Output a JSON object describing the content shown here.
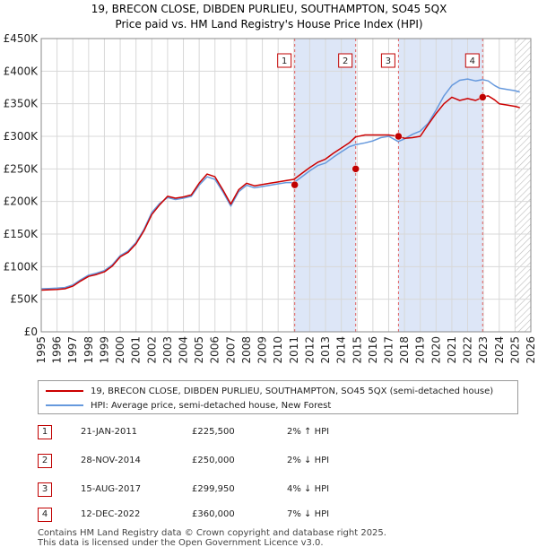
{
  "chart_data": {
    "type": "line",
    "title": "19, BRECON CLOSE, DIBDEN PURLIEU, SOUTHAMPTON, SO45 5QX",
    "subtitle": "Price paid vs. HM Land Registry's House Price Index (HPI)",
    "xlim": [
      1995,
      2026
    ],
    "ylim": [
      0,
      450000
    ],
    "yticks": [
      {
        "value": 0,
        "label": "£0"
      },
      {
        "value": 50000,
        "label": "£50K"
      },
      {
        "value": 100000,
        "label": "£100K"
      },
      {
        "value": 150000,
        "label": "£150K"
      },
      {
        "value": 200000,
        "label": "£200K"
      },
      {
        "value": 250000,
        "label": "£250K"
      },
      {
        "value": 300000,
        "label": "£300K"
      },
      {
        "value": 350000,
        "label": "£350K"
      },
      {
        "value": 400000,
        "label": "£400K"
      },
      {
        "value": 450000,
        "label": "£450K"
      }
    ],
    "xticks": [
      "1995",
      "1996",
      "1997",
      "1998",
      "1999",
      "2000",
      "2001",
      "2002",
      "2003",
      "2004",
      "2005",
      "2006",
      "2007",
      "2008",
      "2009",
      "2010",
      "2011",
      "2012",
      "2013",
      "2014",
      "2015",
      "2016",
      "2017",
      "2018",
      "2019",
      "2020",
      "2021",
      "2022",
      "2023",
      "2024",
      "2025",
      "2026"
    ],
    "shaded_ranges": [
      [
        2011.05,
        2014.91
      ],
      [
        2017.62,
        2022.95
      ]
    ],
    "hatch_from": 2025.0,
    "series": [
      {
        "name": "19, BRECON CLOSE, DIBDEN PURLIEU, SOUTHAMPTON, SO45 5QX (semi-detached house)",
        "color": "#cc0000",
        "x": [
          1995.0,
          1995.5,
          1996.0,
          1996.5,
          1997.0,
          1997.5,
          1998.0,
          1998.5,
          1999.0,
          1999.5,
          2000.0,
          2000.5,
          2001.0,
          2001.5,
          2002.0,
          2002.5,
          2003.0,
          2003.5,
          2004.0,
          2004.5,
          2005.0,
          2005.5,
          2006.0,
          2006.5,
          2007.0,
          2007.5,
          2008.0,
          2008.5,
          2009.0,
          2009.5,
          2010.0,
          2010.5,
          2011.0,
          2011.5,
          2012.0,
          2012.5,
          2013.0,
          2013.5,
          2014.0,
          2014.5,
          2014.9,
          2015.5,
          2016.0,
          2016.5,
          2017.0,
          2017.6,
          2018.0,
          2018.5,
          2019.0,
          2019.5,
          2020.0,
          2020.5,
          2021.0,
          2021.5,
          2022.0,
          2022.5,
          2022.95,
          2023.3,
          2023.7,
          2024.0,
          2024.5,
          2025.0,
          2025.3
        ],
        "values": [
          64000,
          64500,
          65000,
          66000,
          70000,
          78000,
          85000,
          88000,
          92000,
          101000,
          115000,
          122000,
          135000,
          155000,
          180000,
          195000,
          208000,
          205000,
          207000,
          210000,
          228000,
          242000,
          238000,
          218000,
          196000,
          218000,
          228000,
          224000,
          226000,
          228000,
          230000,
          232000,
          234000,
          243000,
          252000,
          260000,
          265000,
          274000,
          282000,
          290000,
          299000,
          302000,
          302000,
          302000,
          302000,
          300000,
          297000,
          298000,
          300000,
          318000,
          335000,
          350000,
          360000,
          355000,
          358000,
          355000,
          360000,
          362000,
          356000,
          350000,
          348000,
          346000,
          344000
        ]
      },
      {
        "name": "HPI: Average price, semi-detached house, New Forest",
        "color": "#6699dd",
        "x": [
          1995.0,
          1995.5,
          1996.0,
          1996.5,
          1997.0,
          1997.5,
          1998.0,
          1998.5,
          1999.0,
          1999.5,
          2000.0,
          2000.5,
          2001.0,
          2001.5,
          2002.0,
          2002.5,
          2003.0,
          2003.5,
          2004.0,
          2004.5,
          2005.0,
          2005.5,
          2006.0,
          2006.5,
          2007.0,
          2007.5,
          2008.0,
          2008.5,
          2009.0,
          2009.5,
          2010.0,
          2010.5,
          2011.0,
          2011.5,
          2012.0,
          2012.5,
          2013.0,
          2013.5,
          2014.0,
          2014.5,
          2014.9,
          2015.5,
          2016.0,
          2016.5,
          2017.0,
          2017.6,
          2018.0,
          2018.5,
          2019.0,
          2019.5,
          2020.0,
          2020.5,
          2021.0,
          2021.5,
          2022.0,
          2022.5,
          2022.95,
          2023.3,
          2023.7,
          2024.0,
          2024.5,
          2025.0,
          2025.3
        ],
        "values": [
          66000,
          66500,
          67000,
          68000,
          72000,
          80000,
          87000,
          90000,
          94000,
          103000,
          117000,
          124000,
          137000,
          157000,
          183000,
          197000,
          206000,
          203000,
          205000,
          208000,
          225000,
          238000,
          234000,
          215000,
          193000,
          215000,
          225000,
          221000,
          223000,
          225000,
          227000,
          229000,
          229000,
          238000,
          247000,
          255000,
          259000,
          268000,
          276000,
          284000,
          287000,
          290000,
          293000,
          298000,
          300000,
          292000,
          296000,
          303000,
          308000,
          320000,
          340000,
          362000,
          378000,
          386000,
          388000,
          385000,
          387000,
          385000,
          378000,
          374000,
          372000,
          370000,
          368000
        ]
      }
    ],
    "sales": [
      {
        "label": "1",
        "date": "21-JAN-2011",
        "x": 2011.05,
        "price": "£225,500",
        "value": 225500,
        "hpi": "2% ↑ HPI"
      },
      {
        "label": "2",
        "date": "28-NOV-2014",
        "x": 2014.91,
        "price": "£250,000",
        "value": 250000,
        "hpi": "2% ↓ HPI"
      },
      {
        "label": "3",
        "date": "15-AUG-2017",
        "x": 2017.62,
        "price": "£299,950",
        "value": 299950,
        "hpi": "4% ↓ HPI"
      },
      {
        "label": "4",
        "date": "12-DEC-2022",
        "x": 2022.95,
        "price": "£360,000",
        "value": 360000,
        "hpi": "7% ↓ HPI"
      }
    ],
    "colors": {
      "price": "#cc0000",
      "hpi": "#6699dd",
      "shade": "#dde6f7",
      "grid": "#d8d8d8",
      "marker": "#c00000"
    }
  },
  "footer": {
    "line1": "Contains HM Land Registry data © Crown copyright and database right 2025.",
    "line2": "This data is licensed under the Open Government Licence v3.0."
  }
}
